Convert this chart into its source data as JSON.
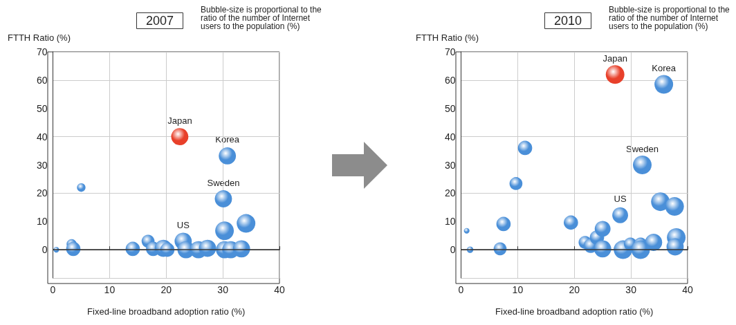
{
  "chart_data": [
    {
      "type": "bubble",
      "title": "2007",
      "xlabel": "Fixed-line broadband adoption ratio (%)",
      "ylabel": "FTTH Ratio (%)",
      "annotations": [
        "Bubble-size is proportional to the ratio of the number of Internet users to the population (%)",
        {
          "text": "Japan",
          "x": 22.4,
          "y": 40
        },
        {
          "text": "Korea",
          "x": 30.8,
          "y": 33.2
        },
        {
          "text": "Sweden",
          "x": 30.1,
          "y": 18
        },
        {
          "text": "US",
          "x": 23.0,
          "y": 3
        }
      ],
      "xlim": [
        0,
        40
      ],
      "xticks": [
        0,
        10,
        20,
        30,
        40
      ],
      "ylim": [
        -10,
        70
      ],
      "yticks": [
        0,
        10,
        20,
        30,
        40,
        50,
        60,
        70
      ],
      "grid": true,
      "ref_lines": [
        {
          "axis": "y",
          "value": 0,
          "color": "#333333"
        }
      ],
      "series": [
        {
          "color": "#4a8fd8",
          "x": [
            0.6,
            3.3,
            3.6,
            5,
            14.1,
            16.8,
            17.7,
            19.5,
            20.2,
            23.0,
            23.5,
            25.7,
            27.3,
            30.1,
            30.3,
            30.3,
            31.4,
            33.3,
            34.1,
            30.8
          ],
          "values": [
            0,
            2,
            0.3,
            22,
            0.3,
            3,
            0.3,
            0.5,
            0,
            3,
            0,
            0,
            0.5,
            18,
            6.7,
            0,
            0,
            0.3,
            9.3,
            33.2
          ],
          "sizes": [
            0.09,
            0.29,
            0.59,
            0.21,
            0.59,
            0.48,
            0.59,
            0.85,
            0.59,
            0.85,
            0.85,
            0.85,
            0.85,
            0.85,
            1,
            0.85,
            0.85,
            0.85,
            1,
            0.85
          ]
        },
        {
          "color": "#e8402a",
          "x": [
            22.4
          ],
          "values": [
            40
          ],
          "sizes": [
            0.85
          ]
        }
      ]
    },
    {
      "type": "bubble",
      "title": "2010",
      "xlabel": "Fixed-line broadband adoption ratio (%)",
      "ylabel": "FTTH Ratio (%)",
      "annotations": [
        "Bubble-size is proportional to the ratio of the number of Internet users to the population (%)",
        {
          "text": "Japan",
          "x": 27.2,
          "y": 62
        },
        {
          "text": "Korea",
          "x": 35.8,
          "y": 58.5
        },
        {
          "text": "Sweden",
          "x": 32,
          "y": 30
        },
        {
          "text": "US",
          "x": 28.1,
          "y": 12.2
        }
      ],
      "xlim": [
        0,
        40
      ],
      "xticks": [
        0,
        10,
        20,
        30,
        40
      ],
      "ylim": [
        -10,
        70
      ],
      "yticks": [
        0,
        10,
        20,
        30,
        40,
        50,
        60,
        70
      ],
      "grid": true,
      "ref_lines": [
        {
          "axis": "y",
          "value": 0,
          "color": "#333333"
        }
      ],
      "series": [
        {
          "color": "#4a8fd8",
          "x": [
            1,
            1.6,
            6.9,
            7.5,
            9.7,
            11.3,
            19.4,
            21.9,
            22.9,
            24,
            25,
            25,
            28.1,
            28.6,
            29.9,
            31.7,
            31.7,
            34,
            35.2,
            37.7,
            38,
            37.8,
            32,
            35.8
          ],
          "values": [
            6.7,
            0,
            0.3,
            9.1,
            23.4,
            36,
            9.6,
            2.6,
            1.4,
            4.3,
            7.4,
            0.3,
            12.2,
            0,
            2,
            2,
            0,
            2.6,
            17,
            15.3,
            4.3,
            1,
            30,
            58.5
          ],
          "sizes": [
            0.09,
            0.12,
            0.48,
            0.59,
            0.48,
            0.59,
            0.59,
            0.48,
            0.59,
            0.59,
            0.72,
            0.85,
            0.72,
            1,
            0.48,
            0.48,
            1,
            0.85,
            1,
            1,
            1,
            0.85,
            1,
            1
          ]
        },
        {
          "color": "#e8402a",
          "x": [
            27.2
          ],
          "values": [
            62
          ],
          "sizes": [
            1
          ]
        }
      ]
    }
  ]
}
